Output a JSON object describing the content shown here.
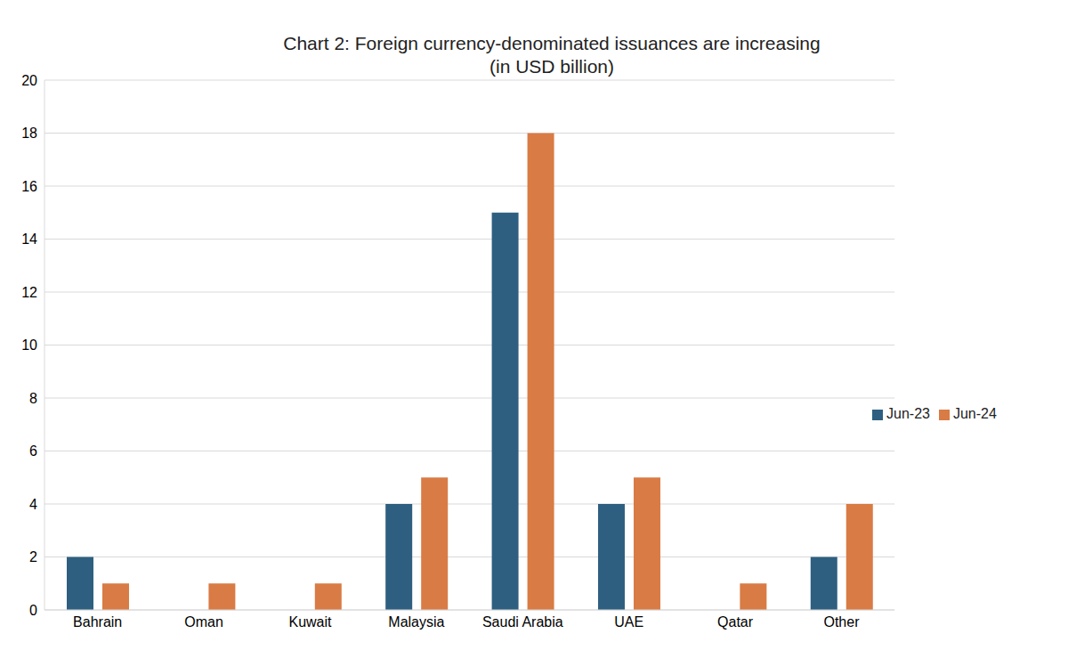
{
  "chart_data": {
    "type": "bar",
    "title": "Chart 2: Foreign currency-denominated issuances are increasing",
    "subtitle": "(in USD billion)",
    "categories": [
      "Bahrain",
      "Oman",
      "Kuwait",
      "Malaysia",
      "Saudi Arabia",
      "UAE",
      "Qatar",
      "Other"
    ],
    "series": [
      {
        "name": "Jun-23",
        "color": "#2e5f80",
        "values": [
          2,
          0,
          0,
          4,
          15,
          4,
          0,
          2
        ]
      },
      {
        "name": "Jun-24",
        "color": "#d97b45",
        "values": [
          1,
          1,
          1,
          5,
          18,
          5,
          1,
          4
        ]
      }
    ],
    "ylim": [
      0,
      20
    ],
    "yticks": [
      0,
      2,
      4,
      6,
      8,
      10,
      12,
      14,
      16,
      18,
      20
    ],
    "grid": true,
    "legend": "right"
  }
}
